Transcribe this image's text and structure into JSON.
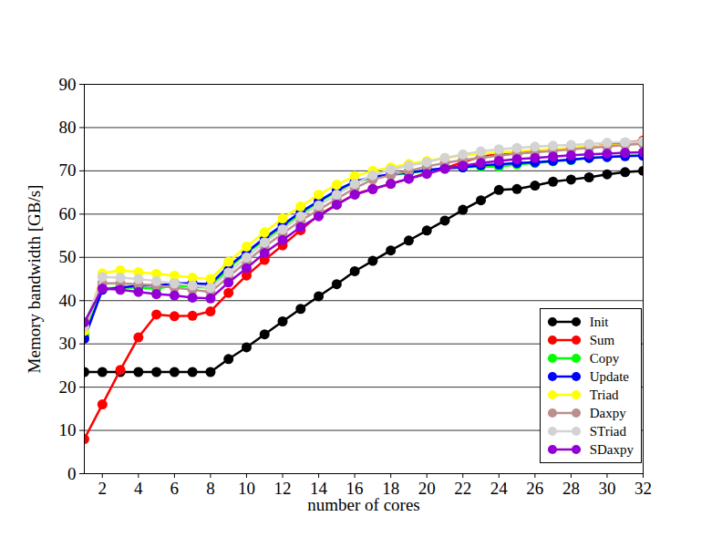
{
  "chart_data": {
    "type": "line",
    "x_label": "number of cores",
    "y_label": "Memory bandwidth [GB/s]",
    "x": [
      1,
      2,
      3,
      4,
      5,
      6,
      7,
      8,
      9,
      10,
      11,
      12,
      13,
      14,
      15,
      16,
      17,
      18,
      19,
      20,
      21,
      22,
      23,
      24,
      25,
      26,
      27,
      28,
      29,
      30,
      31,
      32
    ],
    "xlim": [
      1,
      32
    ],
    "xticks": [
      2,
      4,
      6,
      8,
      10,
      12,
      14,
      16,
      18,
      20,
      22,
      24,
      26,
      28,
      30,
      32
    ],
    "ylim": [
      0,
      90
    ],
    "yticks": [
      0,
      10,
      20,
      30,
      40,
      50,
      60,
      70,
      80,
      90
    ],
    "grid": true,
    "legend": "bottom-right",
    "marker": "circle",
    "line_style": "solid",
    "series": [
      {
        "name": "Init",
        "color": "#000000",
        "values": [
          23.5,
          23.5,
          23.5,
          23.5,
          23.5,
          23.5,
          23.5,
          23.5,
          26.5,
          29.2,
          32.2,
          35.2,
          38.1,
          41,
          43.8,
          46.8,
          49.2,
          51.6,
          53.9,
          56.2,
          58.5,
          61,
          63.2,
          65.6,
          65.8,
          66.6,
          67.5,
          68,
          68.5,
          69.2,
          69.7,
          70
        ]
      },
      {
        "name": "Sum",
        "color": "#ff0000",
        "values": [
          8,
          16,
          24,
          31.5,
          36.8,
          36.4,
          36.5,
          37.5,
          41.8,
          45.8,
          49.4,
          52.8,
          56.3,
          59.8,
          62.2,
          64.6,
          65.8,
          67,
          68.2,
          69.5,
          70.6,
          72,
          73.3,
          73.8,
          74,
          74.5,
          75,
          75.2,
          75.5,
          76,
          76.5,
          77
        ]
      },
      {
        "name": "Copy",
        "color": "#00ff00",
        "values": [
          32,
          42.8,
          43,
          43,
          42.8,
          43.5,
          43.2,
          43,
          47.5,
          51,
          54,
          57,
          60,
          62.8,
          65.2,
          67.3,
          68.5,
          69,
          69.5,
          70,
          70.5,
          70.8,
          71,
          71,
          71.5,
          71.8,
          72.2,
          72.5,
          73,
          73.2,
          73.5,
          73.5
        ]
      },
      {
        "name": "Update",
        "color": "#0000ff",
        "values": [
          31.2,
          42.5,
          43,
          43.5,
          43.5,
          44,
          44,
          43.8,
          48,
          51.2,
          54.5,
          57.5,
          60.5,
          63,
          65.5,
          67.5,
          68.6,
          69.2,
          69.6,
          70.2,
          70.6,
          70.8,
          71.3,
          71.5,
          71.8,
          72,
          72.3,
          72.6,
          73,
          73.2,
          73.4,
          73.5
        ]
      },
      {
        "name": "Triad",
        "color": "#ffff00",
        "values": [
          33,
          46.3,
          47,
          46.6,
          46.2,
          45.8,
          45.3,
          45,
          49,
          52.5,
          55.8,
          59,
          61.8,
          64.5,
          66.8,
          68.8,
          70,
          70.8,
          71.6,
          72.3,
          73,
          73.5,
          74,
          74.3,
          74.5,
          74.8,
          75,
          75.3,
          75.6,
          75.8,
          76,
          76.2
        ]
      },
      {
        "name": "Daxpy",
        "color": "#bc8f8f",
        "values": [
          34,
          44,
          44,
          43.8,
          43.5,
          43,
          42.5,
          42,
          45.5,
          49,
          52.5,
          55.5,
          58.5,
          61,
          63.5,
          66,
          68,
          69,
          70,
          71,
          71.8,
          72.5,
          73,
          73.5,
          74,
          74.3,
          74.6,
          75,
          75.3,
          75.6,
          76,
          76.3
        ]
      },
      {
        "name": "STriad",
        "color": "#d3d3d3",
        "values": [
          34,
          45.5,
          45.3,
          45,
          44.5,
          44,
          43.5,
          43,
          46.5,
          50,
          53.5,
          56.5,
          59.5,
          62,
          64.5,
          67,
          69,
          70.3,
          71.2,
          72,
          73,
          73.8,
          74.5,
          75,
          75.3,
          75.6,
          75.8,
          76,
          76.2,
          76.5,
          76.6,
          76.8
        ]
      },
      {
        "name": "SDaxpy",
        "color": "#9400d3",
        "values": [
          35,
          42.8,
          42.5,
          42,
          41.5,
          41.2,
          40.7,
          40.5,
          44.2,
          47.5,
          51,
          54,
          57,
          59.5,
          62.2,
          64.5,
          65.8,
          67,
          68.2,
          69.3,
          70.5,
          71.2,
          71.8,
          72.3,
          72.7,
          73,
          73.3,
          73.6,
          73.8,
          74,
          74.2,
          74.3
        ]
      }
    ]
  }
}
